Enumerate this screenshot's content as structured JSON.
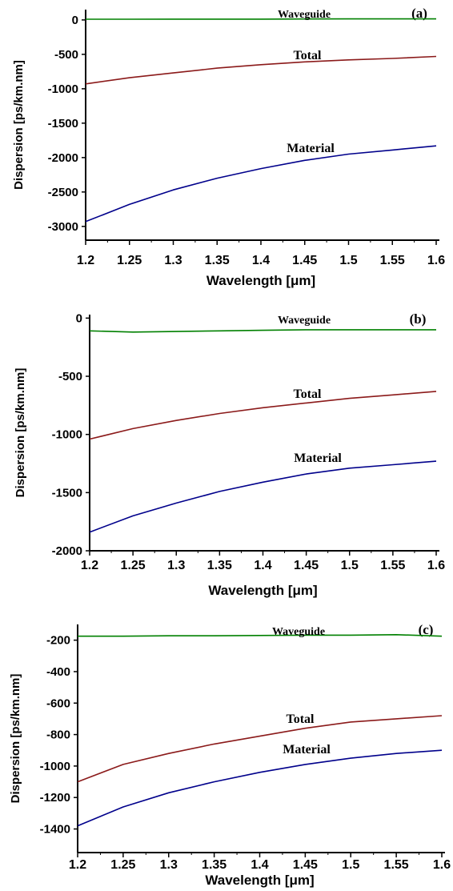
{
  "chart_data": [
    {
      "type": "line",
      "panel_label": "(a)",
      "xlabel": "Wavelength [μm]",
      "ylabel": "Dispersion [ps/km.nm]",
      "xlim": [
        1.2,
        1.6
      ],
      "ylim": [
        -3200,
        150
      ],
      "x_ticks": [
        "1.2",
        "1.25",
        "1.3",
        "1.35",
        "1.4",
        "1.45",
        "1.5",
        "1.55",
        "1.6"
      ],
      "y_ticks": [
        "0",
        "-500",
        "-1000",
        "-1500",
        "-2000",
        "-2500",
        "-3000"
      ],
      "x": [
        1.2,
        1.25,
        1.3,
        1.35,
        1.4,
        1.45,
        1.5,
        1.55,
        1.6
      ],
      "series": [
        {
          "name": "Waveguide",
          "color": "#008000",
          "values": [
            10,
            10,
            12,
            12,
            12,
            14,
            15,
            15,
            15
          ]
        },
        {
          "name": "Total",
          "color": "#8b1a1a",
          "values": [
            -930,
            -840,
            -770,
            -700,
            -650,
            -610,
            -580,
            -560,
            -530
          ]
        },
        {
          "name": "Material",
          "color": "#00008b",
          "values": [
            -2930,
            -2680,
            -2470,
            -2300,
            -2160,
            -2040,
            -1950,
            -1890,
            -1830
          ]
        }
      ],
      "grid": false
    },
    {
      "type": "line",
      "panel_label": "(b)",
      "xlabel": "Wavelength [μm]",
      "ylabel": "Dispersion [ps/km.nm]",
      "xlim": [
        1.2,
        1.6
      ],
      "ylim": [
        -2000,
        30
      ],
      "x_ticks": [
        "1.2",
        "1.25",
        "1.3",
        "1.35",
        "1.4",
        "1.45",
        "1.5",
        "1.55",
        "1.6"
      ],
      "y_ticks": [
        "0",
        "-500",
        "-1000",
        "-1500",
        "-2000"
      ],
      "x": [
        1.2,
        1.25,
        1.3,
        1.35,
        1.4,
        1.45,
        1.5,
        1.55,
        1.6
      ],
      "series": [
        {
          "name": "Waveguide",
          "color": "#008000",
          "values": [
            -110,
            -120,
            -115,
            -110,
            -105,
            -100,
            -100,
            -100,
            -100
          ]
        },
        {
          "name": "Total",
          "color": "#8b1a1a",
          "values": [
            -1040,
            -950,
            -880,
            -820,
            -770,
            -730,
            -690,
            -660,
            -630
          ]
        },
        {
          "name": "Material",
          "color": "#00008b",
          "values": [
            -1840,
            -1700,
            -1590,
            -1490,
            -1410,
            -1340,
            -1290,
            -1260,
            -1230
          ]
        }
      ],
      "grid": false
    },
    {
      "type": "line",
      "panel_label": "(c)",
      "xlabel": "Wavelength [μm]",
      "ylabel": "Dispersion [ps/km.nm]",
      "xlim": [
        1.2,
        1.6
      ],
      "ylim": [
        -1550,
        -100
      ],
      "x_ticks": [
        "1.2",
        "1.25",
        "1.3",
        "1.35",
        "1.4",
        "1.45",
        "1.5",
        "1.55",
        "1.6"
      ],
      "y_ticks": [
        "-200",
        "-400",
        "-600",
        "-800",
        "-1000",
        "-1200",
        "-1400"
      ],
      "x": [
        1.2,
        1.25,
        1.3,
        1.35,
        1.4,
        1.45,
        1.5,
        1.55,
        1.6
      ],
      "series": [
        {
          "name": "Waveguide",
          "color": "#008000",
          "values": [
            -175,
            -175,
            -172,
            -172,
            -170,
            -168,
            -168,
            -165,
            -175
          ]
        },
        {
          "name": "Total",
          "color": "#8b1a1a",
          "values": [
            -1100,
            -990,
            -920,
            -860,
            -810,
            -760,
            -720,
            -700,
            -680
          ]
        },
        {
          "name": "Material",
          "color": "#00008b",
          "values": [
            -1380,
            -1260,
            -1170,
            -1100,
            -1040,
            -990,
            -950,
            -920,
            -900
          ]
        }
      ],
      "grid": false
    }
  ]
}
